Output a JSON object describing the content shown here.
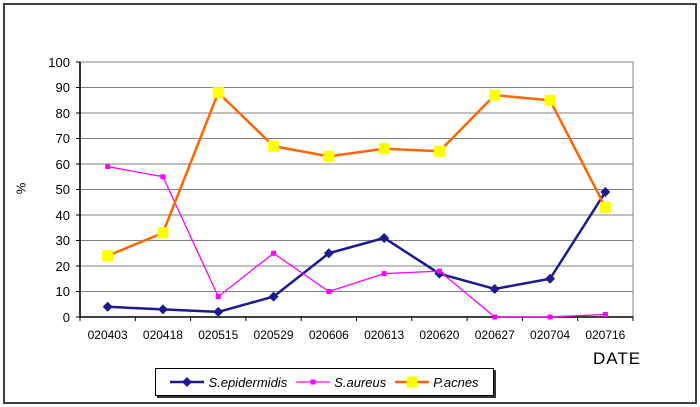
{
  "chart_data": {
    "type": "line",
    "title": "",
    "xlabel": "DATE",
    "ylabel": "%",
    "ylim": [
      0,
      100
    ],
    "yticks": [
      0,
      10,
      20,
      30,
      40,
      50,
      60,
      70,
      80,
      90,
      100
    ],
    "categories": [
      "020403",
      "020418",
      "020515",
      "020529",
      "020606",
      "020613",
      "020620",
      "020627",
      "020704",
      "020716"
    ],
    "series": [
      {
        "name": "S.epidermidis",
        "line_color": "#1b1b8f",
        "marker": "diamond",
        "marker_color": "#1b1b8f",
        "marker_size": 10,
        "line_width": 2.5,
        "values": [
          4,
          3,
          2,
          8,
          25,
          31,
          17,
          11,
          15,
          49
        ]
      },
      {
        "name": "S.aureus",
        "line_color": "#ff00ff",
        "marker": "square",
        "marker_color": "#ff00ff",
        "marker_size": 5,
        "line_width": 1.3,
        "values": [
          59,
          55,
          8,
          25,
          10,
          17,
          18,
          0,
          0,
          1
        ]
      },
      {
        "name": "P.acnes",
        "line_color": "#ff6600",
        "marker": "square",
        "marker_color": "#ffff00",
        "marker_size": 11,
        "line_width": 2.5,
        "values": [
          24,
          33,
          88,
          67,
          63,
          66,
          65,
          87,
          85,
          43
        ]
      }
    ],
    "grid": true,
    "legend_position": "bottom"
  },
  "colors": {
    "gridline": "#808080",
    "axis": "#000000",
    "plot_background": "#ffffff",
    "frame_border": "#3f3f3f"
  }
}
